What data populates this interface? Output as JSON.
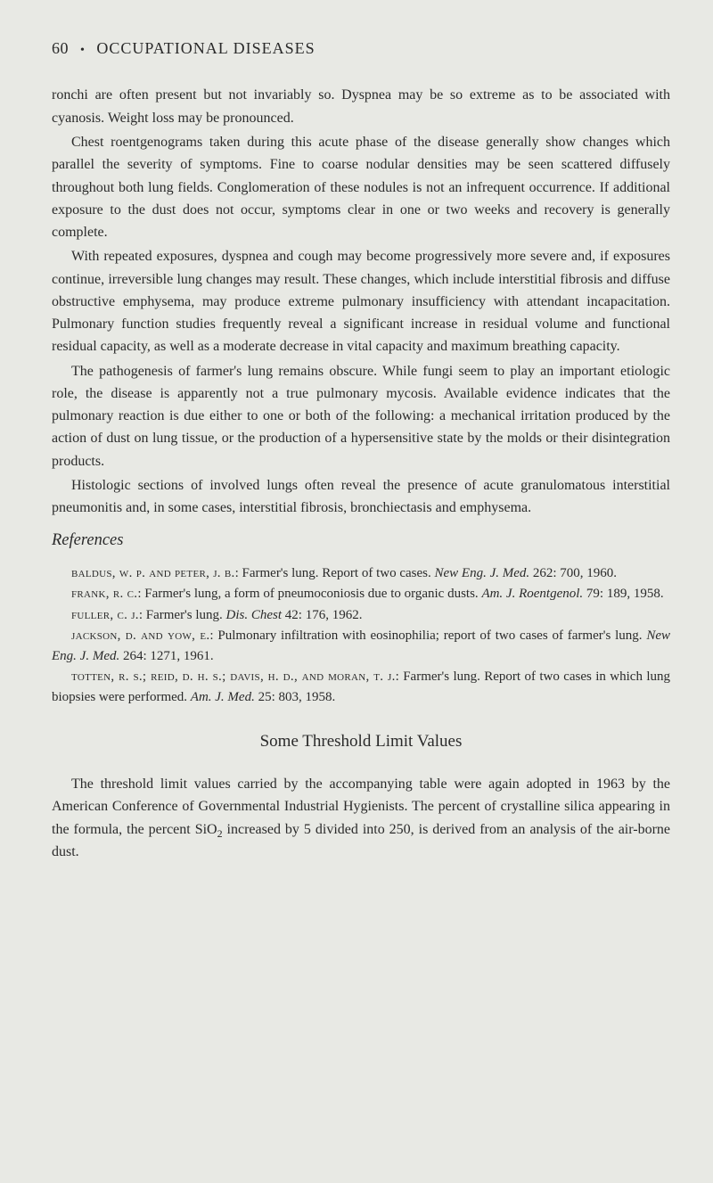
{
  "header": {
    "page_number": "60",
    "bullet": "•",
    "title": "OCCUPATIONAL DISEASES"
  },
  "paragraphs": {
    "p1": "ronchi are often present but not invariably so. Dyspnea may be so extreme as to be associated with cyanosis. Weight loss may be pronounced.",
    "p2": "Chest roentgenograms taken during this acute phase of the disease generally show changes which parallel the severity of symptoms. Fine to coarse nodular densities may be seen scattered diffusely throughout both lung fields. Conglomeration of these nodules is not an infrequent occurrence. If additional exposure to the dust does not occur, symptoms clear in one or two weeks and recovery is generally complete.",
    "p3": "With repeated exposures, dyspnea and cough may become progressively more severe and, if exposures continue, irreversible lung changes may result. These changes, which include interstitial fibrosis and diffuse obstructive emphysema, may produce extreme pulmonary insufficiency with attendant incapacitation. Pulmonary function studies frequently reveal a significant increase in residual volume and functional residual capacity, as well as a moderate decrease in vital capacity and maximum breathing capacity.",
    "p4": "The pathogenesis of farmer's lung remains obscure. While fungi seem to play an important etiologic role, the disease is apparently not a true pulmonary mycosis. Available evidence indicates that the pulmonary reaction is due either to one or both of the following: a mechanical irritation produced by the action of dust on lung tissue, or the production of a hypersensitive state by the molds or their disintegration products.",
    "p5": "Histologic sections of involved lungs often reveal the presence of acute granulomatous interstitial pneumonitis and, in some cases, interstitial fibrosis, bronchiectasis and emphysema."
  },
  "references_heading": "References",
  "references": {
    "r1": {
      "author": "baldus, w. p. and peter, j. b.",
      "text": ": Farmer's lung. Report of two cases. ",
      "journal": "New Eng. J. Med.",
      "cite": " 262: 700, 1960."
    },
    "r2": {
      "author": "frank, r. c.",
      "text": ": Farmer's lung, a form of pneumoconiosis due to organic dusts. ",
      "journal": "Am. J. Roentgenol.",
      "cite": " 79: 189, 1958."
    },
    "r3": {
      "author": "fuller, c. j.",
      "text": ": Farmer's lung. ",
      "journal": "Dis. Chest",
      "cite": " 42: 176, 1962."
    },
    "r4": {
      "author": "jackson, d. and yow, e.",
      "text": ": Pulmonary infiltration with eosinophilia; report of two cases of farmer's lung. ",
      "journal": "New Eng. J. Med.",
      "cite": " 264: 1271, 1961."
    },
    "r5": {
      "author": "totten, r. s.; reid, d. h. s.; davis, h. d., and moran, t. j.",
      "text": ": Farmer's lung. Report of two cases in which lung biopsies were performed. ",
      "journal": "Am. J. Med.",
      "cite": " 25: 803, 1958."
    }
  },
  "section_heading": "Some Threshold Limit Values",
  "threshold_para_a": "The threshold limit values carried by the accompanying table were again adopted in 1963 by the American Conference of Governmental Industrial Hygienists. The percent of crystalline silica appearing in the formula, the percent SiO",
  "threshold_sub": "2",
  "threshold_para_b": " increased by 5 divided into 250, is derived from an analysis of the air-borne dust.",
  "colors": {
    "background": "#e8e9e4",
    "text": "#2a2a2a"
  },
  "typography": {
    "body_font_size": 16,
    "header_font_size": 18,
    "reference_font_size": 15,
    "section_heading_font_size": 19,
    "line_height": 1.58
  }
}
